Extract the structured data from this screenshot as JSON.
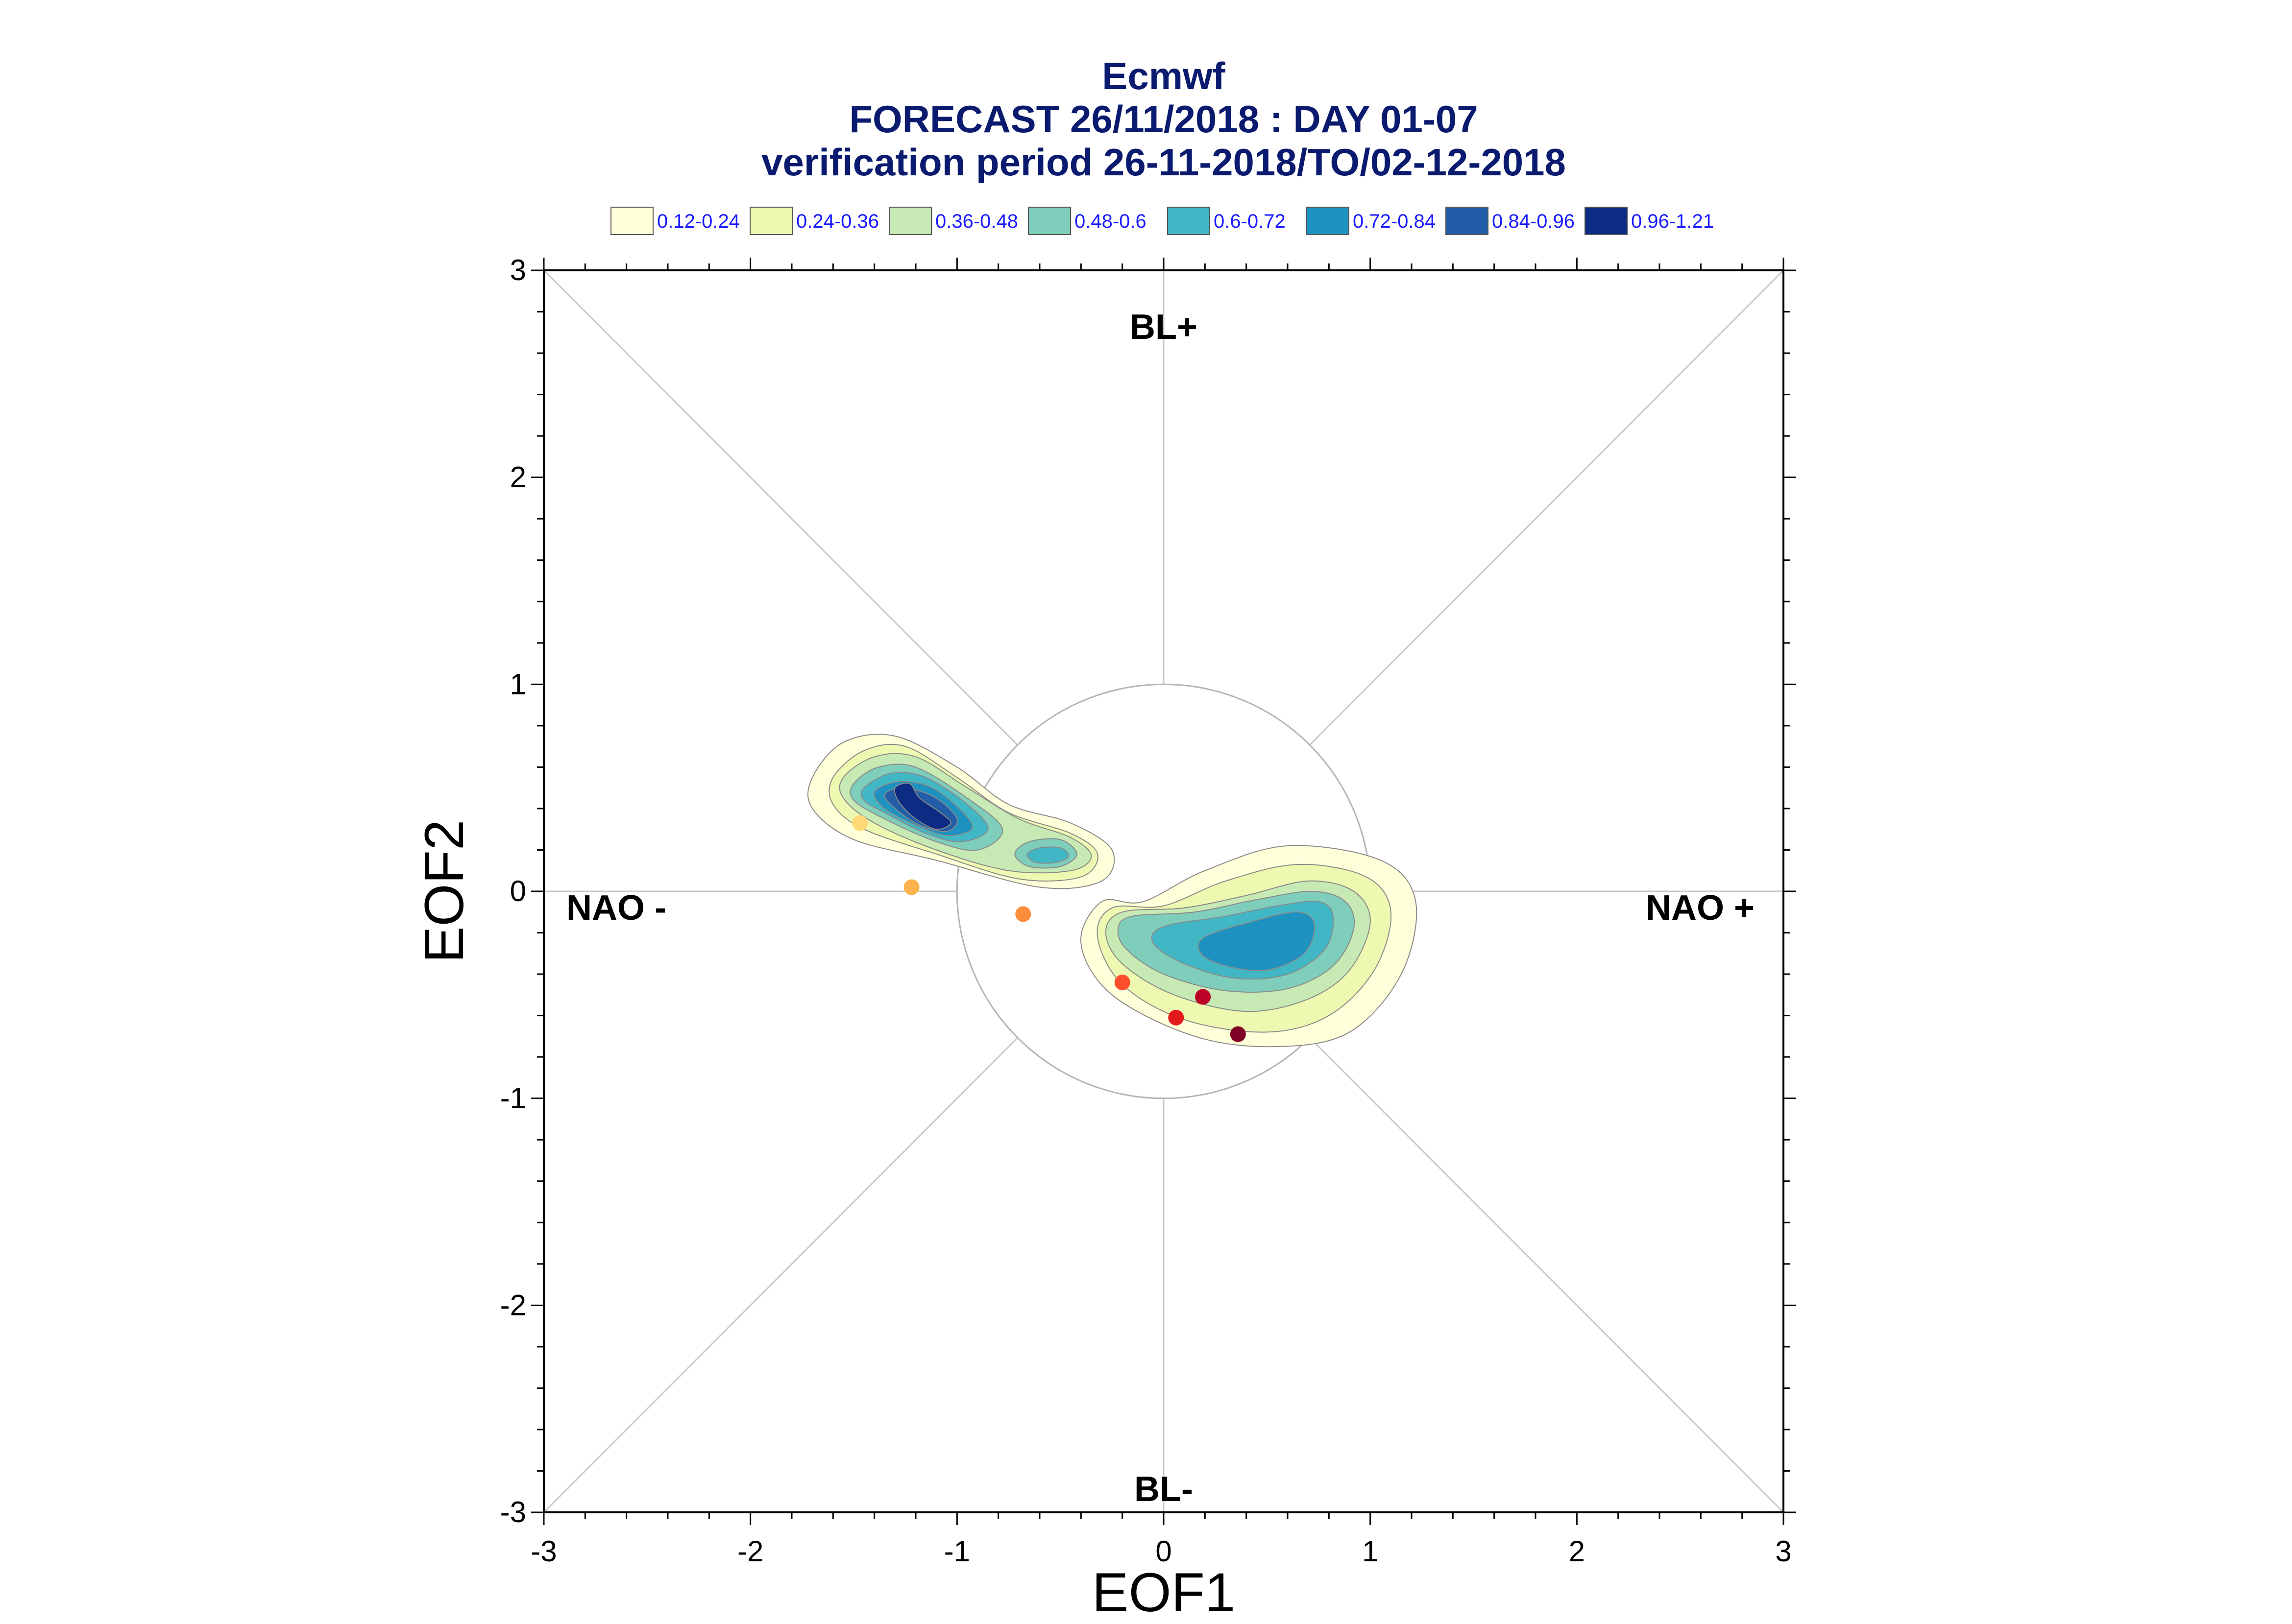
{
  "chart_data": {
    "type": "scatter",
    "title": "Ecmwf",
    "subtitle": [
      "FORECAST 26/11/2018 : DAY 01-07",
      "verification period 26-11-2018/TO/02-12-2018"
    ],
    "xlabel": "EOF1",
    "ylabel": "EOF2",
    "xlim": [
      -3,
      3
    ],
    "ylim": [
      -3,
      3
    ],
    "x_ticks": [
      -3,
      -2,
      -1,
      0,
      1,
      2,
      3
    ],
    "y_ticks": [
      -3,
      -2,
      -1,
      0,
      1,
      2,
      3
    ],
    "x_tick_labels": [
      "-3",
      "-2",
      "-1",
      "0",
      "1",
      "2",
      "3"
    ],
    "y_tick_labels": [
      "-3",
      "-2",
      "-1",
      "0",
      "1",
      "2",
      "3"
    ],
    "grid": false,
    "reference_circle_radius": 1,
    "regions": {
      "top": "BL+",
      "bottom": "BL-",
      "left": "NAO -",
      "right": "NAO +"
    },
    "legend": {
      "placement": "top",
      "entries": [
        {
          "label": "0.12-0.24",
          "color": "#ffffd9"
        },
        {
          "label": "0.24-0.36",
          "color": "#edf8b1"
        },
        {
          "label": "0.36-0.48",
          "color": "#c7e9b4"
        },
        {
          "label": "0.48-0.6",
          "color": "#7fcdbb"
        },
        {
          "label": "0.6-0.72",
          "color": "#41b6c4"
        },
        {
          "label": "0.72-0.84",
          "color": "#1d91c0"
        },
        {
          "label": "0.84-0.96",
          "color": "#225ea8"
        },
        {
          "label": "0.96-1.21",
          "color": "#0c2c84"
        }
      ]
    },
    "density_clusters": [
      {
        "name": "left",
        "levels": [
          {
            "level": 1,
            "points": [
              [
                -1.7,
                0.55
              ],
              [
                -1.55,
                0.72
              ],
              [
                -1.3,
                0.75
              ],
              [
                -1.0,
                0.6
              ],
              [
                -0.75,
                0.42
              ],
              [
                -0.45,
                0.33
              ],
              [
                -0.25,
                0.2
              ],
              [
                -0.3,
                0.05
              ],
              [
                -0.6,
                0.02
              ],
              [
                -1.1,
                0.15
              ],
              [
                -1.5,
                0.25
              ],
              [
                -1.7,
                0.4
              ]
            ]
          },
          {
            "level": 2,
            "points": [
              [
                -1.6,
                0.55
              ],
              [
                -1.45,
                0.68
              ],
              [
                -1.25,
                0.7
              ],
              [
                -1.0,
                0.55
              ],
              [
                -0.75,
                0.38
              ],
              [
                -0.45,
                0.28
              ],
              [
                -0.32,
                0.18
              ],
              [
                -0.4,
                0.07
              ],
              [
                -0.7,
                0.06
              ],
              [
                -1.1,
                0.18
              ],
              [
                -1.45,
                0.3
              ],
              [
                -1.6,
                0.42
              ]
            ]
          },
          {
            "level": 3,
            "points": [
              [
                -1.55,
                0.55
              ],
              [
                -1.4,
                0.65
              ],
              [
                -1.2,
                0.65
              ],
              [
                -0.95,
                0.5
              ],
              [
                -0.7,
                0.35
              ],
              [
                -0.45,
                0.26
              ],
              [
                -0.35,
                0.17
              ],
              [
                -0.45,
                0.1
              ],
              [
                -0.75,
                0.1
              ],
              [
                -1.1,
                0.2
              ],
              [
                -1.4,
                0.33
              ],
              [
                -1.55,
                0.45
              ]
            ]
          },
          {
            "level": 4,
            "points": [
              [
                -1.5,
                0.52
              ],
              [
                -1.38,
                0.6
              ],
              [
                -1.2,
                0.6
              ],
              [
                -0.95,
                0.45
              ],
              [
                -0.78,
                0.3
              ],
              [
                -0.9,
                0.2
              ],
              [
                -1.1,
                0.24
              ],
              [
                -1.35,
                0.35
              ],
              [
                -1.5,
                0.44
              ]
            ]
          },
          {
            "level": 5,
            "points": [
              [
                -1.45,
                0.5
              ],
              [
                -1.32,
                0.57
              ],
              [
                -1.15,
                0.55
              ],
              [
                -0.95,
                0.42
              ],
              [
                -0.85,
                0.3
              ],
              [
                -0.98,
                0.24
              ],
              [
                -1.15,
                0.28
              ],
              [
                -1.35,
                0.38
              ],
              [
                -1.45,
                0.44
              ]
            ]
          },
          {
            "level": 6,
            "points": [
              [
                -1.4,
                0.48
              ],
              [
                -1.28,
                0.53
              ],
              [
                -1.12,
                0.5
              ],
              [
                -0.97,
                0.38
              ],
              [
                -0.93,
                0.3
              ],
              [
                -1.05,
                0.27
              ],
              [
                -1.2,
                0.32
              ],
              [
                -1.35,
                0.4
              ]
            ]
          },
          {
            "level": 7,
            "points": [
              [
                -1.35,
                0.47
              ],
              [
                -1.25,
                0.5
              ],
              [
                -1.1,
                0.45
              ],
              [
                -1.0,
                0.35
              ],
              [
                -1.05,
                0.29
              ],
              [
                -1.18,
                0.32
              ],
              [
                -1.3,
                0.4
              ]
            ]
          },
          {
            "level": 8,
            "points": [
              [
                -1.3,
                0.5
              ],
              [
                -1.23,
                0.52
              ],
              [
                -1.18,
                0.45
              ],
              [
                -1.08,
                0.38
              ],
              [
                -1.03,
                0.33
              ],
              [
                -1.1,
                0.3
              ],
              [
                -1.2,
                0.35
              ],
              [
                -1.28,
                0.43
              ]
            ]
          }
        ]
      },
      {
        "name": "mid",
        "levels": [
          {
            "level": 4,
            "points": [
              [
                -0.65,
                0.24
              ],
              [
                -0.5,
                0.25
              ],
              [
                -0.42,
                0.18
              ],
              [
                -0.5,
                0.12
              ],
              [
                -0.65,
                0.12
              ],
              [
                -0.72,
                0.18
              ]
            ]
          },
          {
            "level": 5,
            "points": [
              [
                -0.6,
                0.21
              ],
              [
                -0.5,
                0.21
              ],
              [
                -0.46,
                0.17
              ],
              [
                -0.52,
                0.14
              ],
              [
                -0.62,
                0.14
              ],
              [
                -0.66,
                0.18
              ]
            ]
          }
        ]
      },
      {
        "name": "right",
        "levels": [
          {
            "level": 1,
            "points": [
              [
                -0.3,
                -0.05
              ],
              [
                -0.1,
                -0.05
              ],
              [
                0.2,
                0.1
              ],
              [
                0.6,
                0.22
              ],
              [
                1.05,
                0.15
              ],
              [
                1.22,
                -0.05
              ],
              [
                1.15,
                -0.4
              ],
              [
                0.9,
                -0.68
              ],
              [
                0.55,
                -0.75
              ],
              [
                0.15,
                -0.7
              ],
              [
                -0.25,
                -0.5
              ],
              [
                -0.4,
                -0.25
              ]
            ]
          },
          {
            "level": 2,
            "points": [
              [
                -0.25,
                -0.08
              ],
              [
                0.0,
                -0.07
              ],
              [
                0.3,
                0.05
              ],
              [
                0.65,
                0.13
              ],
              [
                0.98,
                0.07
              ],
              [
                1.1,
                -0.1
              ],
              [
                1.02,
                -0.38
              ],
              [
                0.8,
                -0.6
              ],
              [
                0.5,
                -0.68
              ],
              [
                0.1,
                -0.62
              ],
              [
                -0.2,
                -0.45
              ],
              [
                -0.32,
                -0.22
              ]
            ]
          },
          {
            "level": 3,
            "points": [
              [
                -0.2,
                -0.1
              ],
              [
                0.1,
                -0.08
              ],
              [
                0.4,
                -0.02
              ],
              [
                0.7,
                0.05
              ],
              [
                0.92,
                0.0
              ],
              [
                1.0,
                -0.15
              ],
              [
                0.9,
                -0.38
              ],
              [
                0.7,
                -0.52
              ],
              [
                0.4,
                -0.58
              ],
              [
                0.05,
                -0.5
              ],
              [
                -0.2,
                -0.35
              ],
              [
                -0.28,
                -0.2
              ]
            ]
          },
          {
            "level": 4,
            "points": [
              [
                -0.15,
                -0.12
              ],
              [
                0.15,
                -0.1
              ],
              [
                0.45,
                -0.04
              ],
              [
                0.72,
                0.0
              ],
              [
                0.88,
                -0.05
              ],
              [
                0.92,
                -0.18
              ],
              [
                0.82,
                -0.36
              ],
              [
                0.6,
                -0.47
              ],
              [
                0.3,
                -0.48
              ],
              [
                0.0,
                -0.4
              ],
              [
                -0.18,
                -0.28
              ],
              [
                -0.22,
                -0.18
              ]
            ]
          },
          {
            "level": 5,
            "points": [
              [
                0.0,
                -0.17
              ],
              [
                0.3,
                -0.12
              ],
              [
                0.55,
                -0.07
              ],
              [
                0.75,
                -0.05
              ],
              [
                0.82,
                -0.12
              ],
              [
                0.78,
                -0.28
              ],
              [
                0.6,
                -0.4
              ],
              [
                0.35,
                -0.42
              ],
              [
                0.1,
                -0.35
              ],
              [
                -0.05,
                -0.25
              ]
            ]
          },
          {
            "level": 6,
            "points": [
              [
                0.2,
                -0.22
              ],
              [
                0.45,
                -0.14
              ],
              [
                0.65,
                -0.1
              ],
              [
                0.73,
                -0.16
              ],
              [
                0.68,
                -0.3
              ],
              [
                0.5,
                -0.38
              ],
              [
                0.3,
                -0.36
              ],
              [
                0.18,
                -0.3
              ]
            ]
          }
        ]
      }
    ],
    "points": [
      {
        "x": -1.47,
        "y": 0.33,
        "color": "#fed976"
      },
      {
        "x": -1.22,
        "y": 0.02,
        "color": "#fdb24c"
      },
      {
        "x": -0.68,
        "y": -0.11,
        "color": "#fd8d3c"
      },
      {
        "x": -0.2,
        "y": -0.44,
        "color": "#fc4e2a"
      },
      {
        "x": 0.06,
        "y": -0.61,
        "color": "#e31a1c"
      },
      {
        "x": 0.19,
        "y": -0.51,
        "color": "#bd0026"
      },
      {
        "x": 0.36,
        "y": -0.69,
        "color": "#800026"
      }
    ]
  }
}
